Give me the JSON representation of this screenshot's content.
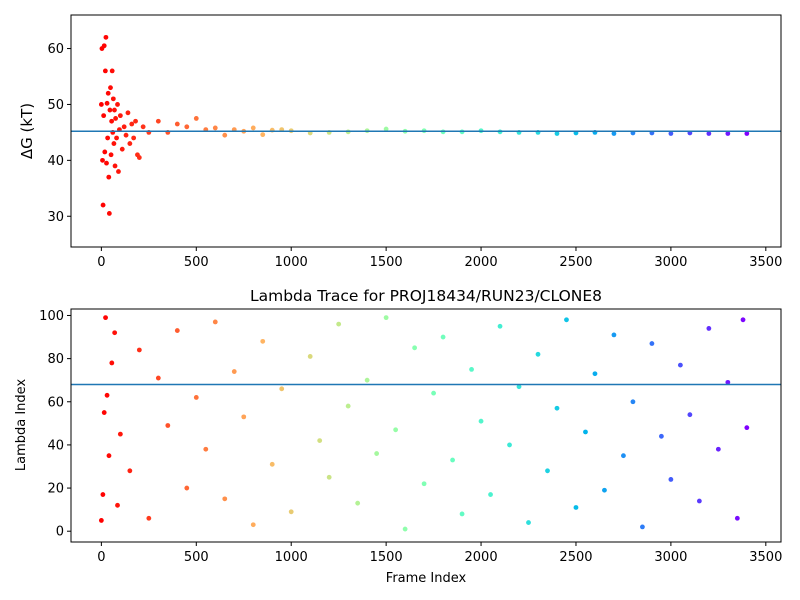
{
  "chart_data": [
    {
      "type": "scatter",
      "title": "",
      "xlabel": "",
      "ylabel": "ΔG (kT)",
      "xlim": [
        -160,
        3580
      ],
      "ylim": [
        24.5,
        66
      ],
      "xticks": [
        0,
        500,
        1000,
        1500,
        2000,
        2500,
        3000,
        3500
      ],
      "yticks": [
        30,
        40,
        50,
        60
      ],
      "xtick_labels": [
        "0",
        "500",
        "1000",
        "1500",
        "2000",
        "2500",
        "3000",
        "3500"
      ],
      "ytick_labels": [
        "30",
        "40",
        "50",
        "60"
      ],
      "colormap": "rainbow (red at frame 0 → violet at frame 3400)",
      "reference_line": {
        "y": 45.2,
        "color": "#1f77b4"
      },
      "n_frames": 3400,
      "series": [
        {
          "points": [
            [
              0,
              50.0
            ],
            [
              3,
              60.0
            ],
            [
              6,
              40.0
            ],
            [
              9,
              32.0
            ],
            [
              12,
              48.0
            ],
            [
              15,
              60.5
            ],
            [
              18,
              41.5
            ],
            [
              21,
              56.0
            ],
            [
              24,
              62.0
            ],
            [
              27,
              39.5
            ],
            [
              30,
              50.2
            ],
            [
              33,
              44.0
            ],
            [
              36,
              52.0
            ],
            [
              39,
              37.0
            ],
            [
              42,
              30.5
            ],
            [
              45,
              49.0
            ],
            [
              48,
              53.0
            ],
            [
              51,
              41.0
            ],
            [
              54,
              47.0
            ],
            [
              57,
              56.0
            ],
            [
              60,
              45.0
            ],
            [
              63,
              51.0
            ],
            [
              66,
              43.0
            ],
            [
              69,
              49.0
            ],
            [
              72,
              39.0
            ],
            [
              75,
              47.5
            ],
            [
              80,
              44.0
            ],
            [
              85,
              50.0
            ],
            [
              90,
              38.0
            ],
            [
              95,
              45.5
            ],
            [
              100,
              48.0
            ],
            [
              110,
              42.0
            ],
            [
              120,
              46.0
            ],
            [
              130,
              44.5
            ],
            [
              140,
              48.5
            ],
            [
              150,
              43.0
            ],
            [
              160,
              46.5
            ],
            [
              170,
              44.0
            ],
            [
              180,
              47.0
            ],
            [
              190,
              41.0
            ],
            [
              200,
              40.5
            ],
            [
              220,
              46.0
            ],
            [
              250,
              45.0
            ],
            [
              300,
              47.0
            ],
            [
              350,
              45.0
            ],
            [
              400,
              46.5
            ],
            [
              450,
              46.0
            ],
            [
              500,
              47.5
            ],
            [
              550,
              45.5
            ],
            [
              600,
              45.8
            ],
            [
              650,
              44.5
            ],
            [
              700,
              45.5
            ],
            [
              750,
              45.2
            ],
            [
              800,
              45.8
            ],
            [
              850,
              44.6
            ],
            [
              900,
              45.4
            ],
            [
              950,
              45.5
            ],
            [
              1000,
              45.3
            ],
            [
              1100,
              44.9
            ],
            [
              1200,
              45.0
            ],
            [
              1300,
              45.1
            ],
            [
              1400,
              45.3
            ],
            [
              1500,
              45.6
            ],
            [
              1600,
              45.2
            ],
            [
              1700,
              45.3
            ],
            [
              1800,
              45.1
            ],
            [
              1900,
              45.1
            ],
            [
              2000,
              45.3
            ],
            [
              2100,
              45.1
            ],
            [
              2200,
              45.0
            ],
            [
              2300,
              45.0
            ],
            [
              2400,
              44.8
            ],
            [
              2500,
              44.9
            ],
            [
              2600,
              45.0
            ],
            [
              2700,
              44.8
            ],
            [
              2800,
              44.9
            ],
            [
              2900,
              44.9
            ],
            [
              3000,
              44.8
            ],
            [
              3100,
              44.9
            ],
            [
              3200,
              44.8
            ],
            [
              3300,
              44.8
            ],
            [
              3400,
              44.8
            ]
          ]
        }
      ]
    },
    {
      "type": "scatter",
      "title": "Lambda Trace for PROJ18434/RUN23/CLONE8",
      "xlabel": "Frame Index",
      "ylabel": "Lambda Index",
      "xlim": [
        -160,
        3580
      ],
      "ylim": [
        -5,
        103
      ],
      "xticks": [
        0,
        500,
        1000,
        1500,
        2000,
        2500,
        3000,
        3500
      ],
      "yticks": [
        0,
        20,
        40,
        60,
        80,
        100
      ],
      "xtick_labels": [
        "0",
        "500",
        "1000",
        "1500",
        "2000",
        "2500",
        "3000",
        "3500"
      ],
      "ytick_labels": [
        "0",
        "20",
        "40",
        "60",
        "80",
        "100"
      ],
      "colormap": "rainbow (red at frame 0 → violet at frame 3400)",
      "reference_line": {
        "y": 68,
        "color": "#1f77b4"
      },
      "n_frames": 3400,
      "series": [
        {
          "points": [
            [
              0,
              5
            ],
            [
              8,
              17
            ],
            [
              15,
              55
            ],
            [
              22,
              99
            ],
            [
              30,
              63
            ],
            [
              40,
              35
            ],
            [
              55,
              78
            ],
            [
              70,
              92
            ],
            [
              85,
              12
            ],
            [
              100,
              45
            ],
            [
              150,
              28
            ],
            [
              200,
              84
            ],
            [
              250,
              6
            ],
            [
              300,
              71
            ],
            [
              350,
              49
            ],
            [
              400,
              93
            ],
            [
              450,
              20
            ],
            [
              500,
              62
            ],
            [
              550,
              38
            ],
            [
              600,
              97
            ],
            [
              650,
              15
            ],
            [
              700,
              74
            ],
            [
              750,
              53
            ],
            [
              800,
              3
            ],
            [
              850,
              88
            ],
            [
              900,
              31
            ],
            [
              950,
              66
            ],
            [
              1000,
              9
            ],
            [
              1100,
              81
            ],
            [
              1150,
              42
            ],
            [
              1200,
              25
            ],
            [
              1250,
              96
            ],
            [
              1300,
              58
            ],
            [
              1350,
              13
            ],
            [
              1400,
              70
            ],
            [
              1450,
              36
            ],
            [
              1500,
              99
            ],
            [
              1550,
              47
            ],
            [
              1600,
              1
            ],
            [
              1650,
              85
            ],
            [
              1700,
              22
            ],
            [
              1750,
              64
            ],
            [
              1800,
              90
            ],
            [
              1850,
              33
            ],
            [
              1900,
              8
            ],
            [
              1950,
              75
            ],
            [
              2000,
              51
            ],
            [
              2050,
              17
            ],
            [
              2100,
              95
            ],
            [
              2150,
              40
            ],
            [
              2200,
              67
            ],
            [
              2250,
              4
            ],
            [
              2300,
              82
            ],
            [
              2350,
              28
            ],
            [
              2400,
              57
            ],
            [
              2450,
              98
            ],
            [
              2500,
              11
            ],
            [
              2550,
              46
            ],
            [
              2600,
              73
            ],
            [
              2650,
              19
            ],
            [
              2700,
              91
            ],
            [
              2750,
              35
            ],
            [
              2800,
              60
            ],
            [
              2850,
              2
            ],
            [
              2900,
              87
            ],
            [
              2950,
              44
            ],
            [
              3000,
              24
            ],
            [
              3050,
              77
            ],
            [
              3100,
              54
            ],
            [
              3150,
              14
            ],
            [
              3200,
              94
            ],
            [
              3250,
              38
            ],
            [
              3300,
              69
            ],
            [
              3350,
              6
            ],
            [
              3380,
              98
            ],
            [
              3400,
              48
            ]
          ]
        }
      ]
    }
  ]
}
